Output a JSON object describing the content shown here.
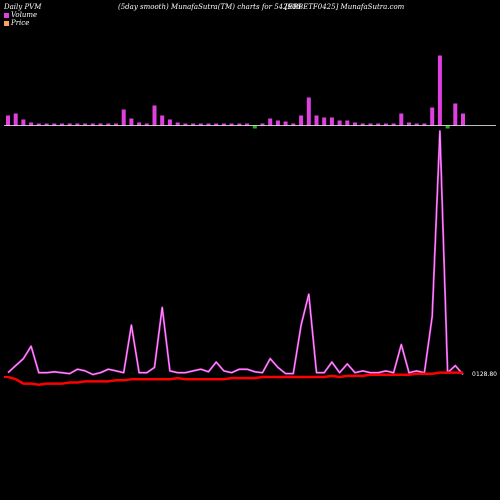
{
  "header": {
    "left": "Daily PVM",
    "center": "(5day smooth) MunafaSutra(TM) charts for 542908",
    "right": "[EBBETF0425] MunafaSutra.com"
  },
  "legend": [
    {
      "label": "Volume",
      "color": "#e040e0"
    },
    {
      "label": "Price",
      "color": "#ffa060"
    }
  ],
  "colors": {
    "background": "#000000",
    "volume_up": "#e040e0",
    "volume_down": "#22aa22",
    "pvm_line": "#e040e0",
    "price_line": "#ff0000",
    "baseline": "#ffffff"
  },
  "chart_data": {
    "type": "bar+line",
    "title": "(5day smooth) MunafaSutra(TM) charts for 542908",
    "x": [
      0,
      1,
      2,
      3,
      4,
      5,
      6,
      7,
      8,
      9,
      10,
      11,
      12,
      13,
      14,
      15,
      16,
      17,
      18,
      19,
      20,
      21,
      22,
      23,
      24,
      25,
      26,
      27,
      28,
      29,
      30,
      31,
      32,
      33,
      34,
      35,
      36,
      37,
      38,
      39,
      40,
      41,
      42,
      43,
      44,
      45,
      46,
      47,
      48,
      49,
      50,
      51,
      52,
      53,
      54,
      55,
      56,
      57,
      58,
      59
    ],
    "series": [
      {
        "name": "Volume",
        "values": [
          10,
          12,
          6,
          3,
          2,
          1,
          1,
          1,
          1,
          1,
          1,
          1,
          1,
          1,
          2,
          16,
          7,
          3,
          2,
          20,
          10,
          6,
          3,
          2,
          1,
          1,
          2,
          2,
          2,
          2,
          2,
          2,
          1,
          1,
          7,
          5,
          4,
          1,
          10,
          28,
          10,
          8,
          8,
          5,
          5,
          3,
          2,
          2,
          1,
          1,
          1,
          12,
          3,
          1,
          1,
          18,
          70,
          10,
          22,
          12
        ],
        "down": [
          0,
          0,
          0,
          0,
          0,
          0,
          0,
          0,
          0,
          0,
          0,
          0,
          0,
          0,
          0,
          0,
          0,
          0,
          0,
          0,
          0,
          0,
          0,
          0,
          0,
          0,
          0,
          0,
          0,
          0,
          0,
          0,
          1,
          0,
          0,
          0,
          0,
          0,
          0,
          0,
          0,
          0,
          0,
          0,
          0,
          0,
          0,
          0,
          0,
          0,
          0,
          0,
          0,
          0,
          0,
          0,
          0,
          1,
          0,
          0
        ]
      },
      {
        "name": "PVM",
        "values": [
          6,
          14,
          22,
          36,
          6,
          6,
          7,
          6,
          5,
          10,
          8,
          4,
          6,
          10,
          8,
          6,
          60,
          6,
          6,
          12,
          80,
          8,
          6,
          6,
          8,
          10,
          7,
          18,
          8,
          6,
          10,
          10,
          7,
          6,
          22,
          12,
          5,
          5,
          60,
          95,
          6,
          6,
          18,
          6,
          16,
          6,
          8,
          6,
          6,
          8,
          6,
          38,
          6,
          8,
          6,
          70,
          280,
          6,
          14,
          4
        ]
      },
      {
        "name": "Price",
        "values": [
          0,
          1,
          3,
          3,
          3.5,
          3,
          3,
          3,
          2.5,
          2.5,
          2,
          2,
          2,
          2,
          1.5,
          1.5,
          1,
          1,
          1,
          1,
          1,
          1,
          0.5,
          1,
          1,
          1,
          1,
          1,
          1,
          0.5,
          0.5,
          0.5,
          0.5,
          0,
          0,
          0,
          0,
          0,
          0,
          0,
          0,
          0,
          -0.5,
          0,
          -0.5,
          -0.5,
          -0.5,
          -1,
          -1,
          -1,
          -1,
          -1,
          -1,
          -1.5,
          -1.5,
          -1.5,
          -2,
          -2,
          -2,
          -2
        ]
      }
    ],
    "price_label": "128.80",
    "vol_label": "0"
  }
}
